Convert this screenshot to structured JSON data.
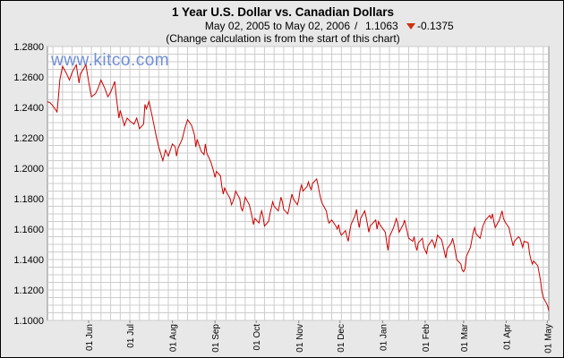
{
  "header": {
    "title": "1 Year U.S. Dollar vs. Canadian Dollars",
    "range_text": "May 02, 2005 to May 02, 2006",
    "separator": "/",
    "last_value": "1.1063",
    "change_value": "-0.1375",
    "change_direction_icon": "down-triangle-icon",
    "note": "(Change calculation is from the start of this chart)"
  },
  "watermark": "www.kitco.com",
  "colors": {
    "background": "#e8e8e8",
    "plot_background": "#ffffff",
    "grid": "#c8c8c8",
    "line": "#cc0000",
    "down_arrow": "#cc3311",
    "watermark": "#6f8fd8"
  },
  "chart_data": {
    "type": "line",
    "title": "1 Year U.S. Dollar vs. Canadian Dollars",
    "xlabel": "",
    "ylabel": "",
    "ylim": [
      1.1,
      1.28
    ],
    "xlim": [
      "2005-05-02",
      "2006-05-02"
    ],
    "grid": true,
    "legend": "none",
    "y_ticks": [
      "1.1000",
      "1.1200",
      "1.1400",
      "1.1600",
      "1.1800",
      "1.2000",
      "1.2200",
      "1.2400",
      "1.2600",
      "1.2800"
    ],
    "x_ticks": [
      {
        "label": "01 Jun",
        "date": "2005-06-01"
      },
      {
        "label": "01 Jul",
        "date": "2005-07-01"
      },
      {
        "label": "01 Aug",
        "date": "2005-08-01"
      },
      {
        "label": "01 Sep",
        "date": "2005-09-01"
      },
      {
        "label": "01 Oct",
        "date": "2005-10-01"
      },
      {
        "label": "01 Nov",
        "date": "2005-11-01"
      },
      {
        "label": "01 Dec",
        "date": "2005-12-01"
      },
      {
        "label": "01 Jan",
        "date": "2006-01-01"
      },
      {
        "label": "01 Feb",
        "date": "2006-02-01"
      },
      {
        "label": "01 Mar",
        "date": "2006-03-01"
      },
      {
        "label": "01 Apr",
        "date": "2006-04-01"
      },
      {
        "label": "01 May",
        "date": "2006-05-01"
      }
    ],
    "series": [
      {
        "points": [
          [
            "2005-05-02",
            1.2438
          ],
          [
            "2005-05-04",
            1.243
          ],
          [
            "2005-05-06",
            1.241
          ],
          [
            "2005-05-09",
            1.237
          ],
          [
            "2005-05-10",
            1.247
          ],
          [
            "2005-05-11",
            1.258
          ],
          [
            "2005-05-13",
            1.267
          ],
          [
            "2005-05-16",
            1.262
          ],
          [
            "2005-05-18",
            1.258
          ],
          [
            "2005-05-20",
            1.263
          ],
          [
            "2005-05-23",
            1.268
          ],
          [
            "2005-05-25",
            1.256
          ],
          [
            "2005-05-26",
            1.262
          ],
          [
            "2005-05-30",
            1.268
          ],
          [
            "2005-06-01",
            1.257
          ],
          [
            "2005-06-03",
            1.247
          ],
          [
            "2005-06-06",
            1.249
          ],
          [
            "2005-06-08",
            1.253
          ],
          [
            "2005-06-10",
            1.258
          ],
          [
            "2005-06-13",
            1.252
          ],
          [
            "2005-06-15",
            1.247
          ],
          [
            "2005-06-17",
            1.25
          ],
          [
            "2005-06-20",
            1.257
          ],
          [
            "2005-06-21",
            1.248
          ],
          [
            "2005-06-23",
            1.233
          ],
          [
            "2005-06-24",
            1.238
          ],
          [
            "2005-06-27",
            1.228
          ],
          [
            "2005-06-29",
            1.233
          ],
          [
            "2005-07-01",
            1.231
          ],
          [
            "2005-07-04",
            1.229
          ],
          [
            "2005-07-06",
            1.233
          ],
          [
            "2005-07-08",
            1.226
          ],
          [
            "2005-07-11",
            1.229
          ],
          [
            "2005-07-12",
            1.242
          ],
          [
            "2005-07-13",
            1.239
          ],
          [
            "2005-07-15",
            1.244
          ],
          [
            "2005-07-18",
            1.231
          ],
          [
            "2005-07-20",
            1.222
          ],
          [
            "2005-07-21",
            1.218
          ],
          [
            "2005-07-22",
            1.214
          ],
          [
            "2005-07-25",
            1.205
          ],
          [
            "2005-07-27",
            1.212
          ],
          [
            "2005-07-29",
            1.208
          ],
          [
            "2005-08-01",
            1.216
          ],
          [
            "2005-08-03",
            1.214
          ],
          [
            "2005-08-04",
            1.208
          ],
          [
            "2005-08-05",
            1.213
          ],
          [
            "2005-08-08",
            1.219
          ],
          [
            "2005-08-10",
            1.226
          ],
          [
            "2005-08-12",
            1.232
          ],
          [
            "2005-08-15",
            1.228
          ],
          [
            "2005-08-17",
            1.222
          ],
          [
            "2005-08-18",
            1.214
          ],
          [
            "2005-08-19",
            1.219
          ],
          [
            "2005-08-22",
            1.211
          ],
          [
            "2005-08-24",
            1.209
          ],
          [
            "2005-08-25",
            1.216
          ],
          [
            "2005-08-26",
            1.21
          ],
          [
            "2005-08-29",
            1.204
          ],
          [
            "2005-08-31",
            1.198
          ],
          [
            "2005-09-01",
            1.194
          ],
          [
            "2005-09-02",
            1.198
          ],
          [
            "2005-09-05",
            1.195
          ],
          [
            "2005-09-06",
            1.188
          ],
          [
            "2005-09-07",
            1.183
          ],
          [
            "2005-09-08",
            1.187
          ],
          [
            "2005-09-09",
            1.185
          ],
          [
            "2005-09-12",
            1.18
          ],
          [
            "2005-09-13",
            1.176
          ],
          [
            "2005-09-14",
            1.178
          ],
          [
            "2005-09-15",
            1.181
          ],
          [
            "2005-09-16",
            1.185
          ],
          [
            "2005-09-19",
            1.18
          ],
          [
            "2005-09-20",
            1.174
          ],
          [
            "2005-09-21",
            1.172
          ],
          [
            "2005-09-22",
            1.176
          ],
          [
            "2005-09-23",
            1.181
          ],
          [
            "2005-09-26",
            1.176
          ],
          [
            "2005-09-27",
            1.172
          ],
          [
            "2005-09-28",
            1.168
          ],
          [
            "2005-09-29",
            1.163
          ],
          [
            "2005-09-30",
            1.167
          ],
          [
            "2005-10-03",
            1.164
          ],
          [
            "2005-10-04",
            1.169
          ],
          [
            "2005-10-05",
            1.172
          ],
          [
            "2005-10-06",
            1.168
          ],
          [
            "2005-10-07",
            1.162
          ],
          [
            "2005-10-10",
            1.165
          ],
          [
            "2005-10-11",
            1.17
          ],
          [
            "2005-10-12",
            1.174
          ],
          [
            "2005-10-13",
            1.178
          ],
          [
            "2005-10-14",
            1.175
          ],
          [
            "2005-10-17",
            1.172
          ],
          [
            "2005-10-18",
            1.176
          ],
          [
            "2005-10-19",
            1.181
          ],
          [
            "2005-10-20",
            1.178
          ],
          [
            "2005-10-21",
            1.173
          ],
          [
            "2005-10-24",
            1.17
          ],
          [
            "2005-10-25",
            1.174
          ],
          [
            "2005-10-26",
            1.179
          ],
          [
            "2005-10-27",
            1.183
          ],
          [
            "2005-10-28",
            1.18
          ],
          [
            "2005-10-31",
            1.176
          ],
          [
            "2005-11-01",
            1.18
          ],
          [
            "2005-11-02",
            1.186
          ],
          [
            "2005-11-03",
            1.189
          ],
          [
            "2005-11-04",
            1.185
          ],
          [
            "2005-11-07",
            1.188
          ],
          [
            "2005-11-08",
            1.191
          ],
          [
            "2005-11-09",
            1.188
          ],
          [
            "2005-11-10",
            1.186
          ],
          [
            "2005-11-11",
            1.19
          ],
          [
            "2005-11-14",
            1.193
          ],
          [
            "2005-11-15",
            1.189
          ],
          [
            "2005-11-16",
            1.184
          ],
          [
            "2005-11-17",
            1.18
          ],
          [
            "2005-11-18",
            1.177
          ],
          [
            "2005-11-21",
            1.172
          ],
          [
            "2005-11-22",
            1.167
          ],
          [
            "2005-11-23",
            1.164
          ],
          [
            "2005-11-25",
            1.166
          ],
          [
            "2005-11-28",
            1.162
          ],
          [
            "2005-11-29",
            1.16
          ],
          [
            "2005-11-30",
            1.163
          ],
          [
            "2005-12-01",
            1.158
          ],
          [
            "2005-12-02",
            1.156
          ],
          [
            "2005-12-05",
            1.159
          ],
          [
            "2005-12-06",
            1.155
          ],
          [
            "2005-12-07",
            1.152
          ],
          [
            "2005-12-08",
            1.158
          ],
          [
            "2005-12-09",
            1.163
          ],
          [
            "2005-12-12",
            1.169
          ],
          [
            "2005-12-13",
            1.173
          ],
          [
            "2005-12-14",
            1.166
          ],
          [
            "2005-12-15",
            1.161
          ],
          [
            "2005-12-16",
            1.167
          ],
          [
            "2005-12-19",
            1.172
          ],
          [
            "2005-12-20",
            1.168
          ],
          [
            "2005-12-21",
            1.163
          ],
          [
            "2005-12-22",
            1.158
          ],
          [
            "2005-12-23",
            1.162
          ],
          [
            "2005-12-27",
            1.166
          ],
          [
            "2005-12-28",
            1.16
          ],
          [
            "2005-12-29",
            1.165
          ],
          [
            "2005-12-30",
            1.163
          ],
          [
            "2006-01-03",
            1.158
          ],
          [
            "2006-01-04",
            1.151
          ],
          [
            "2006-01-05",
            1.146
          ],
          [
            "2006-01-06",
            1.155
          ],
          [
            "2006-01-09",
            1.161
          ],
          [
            "2006-01-10",
            1.164
          ],
          [
            "2006-01-11",
            1.167
          ],
          [
            "2006-01-12",
            1.164
          ],
          [
            "2006-01-13",
            1.158
          ],
          [
            "2006-01-16",
            1.163
          ],
          [
            "2006-01-17",
            1.166
          ],
          [
            "2006-01-18",
            1.162
          ],
          [
            "2006-01-19",
            1.158
          ],
          [
            "2006-01-20",
            1.154
          ],
          [
            "2006-01-23",
            1.152
          ],
          [
            "2006-01-24",
            1.155
          ],
          [
            "2006-01-25",
            1.149
          ],
          [
            "2006-01-26",
            1.146
          ],
          [
            "2006-01-27",
            1.151
          ],
          [
            "2006-01-30",
            1.154
          ],
          [
            "2006-01-31",
            1.148
          ],
          [
            "2006-02-01",
            1.146
          ],
          [
            "2006-02-02",
            1.144
          ],
          [
            "2006-02-03",
            1.149
          ],
          [
            "2006-02-06",
            1.153
          ],
          [
            "2006-02-07",
            1.151
          ],
          [
            "2006-02-08",
            1.148
          ],
          [
            "2006-02-09",
            1.152
          ],
          [
            "2006-02-10",
            1.156
          ],
          [
            "2006-02-13",
            1.153
          ],
          [
            "2006-02-14",
            1.149
          ],
          [
            "2006-02-15",
            1.145
          ],
          [
            "2006-02-16",
            1.141
          ],
          [
            "2006-02-17",
            1.147
          ],
          [
            "2006-02-20",
            1.151
          ],
          [
            "2006-02-21",
            1.154
          ],
          [
            "2006-02-22",
            1.15
          ],
          [
            "2006-02-23",
            1.145
          ],
          [
            "2006-02-24",
            1.14
          ],
          [
            "2006-02-27",
            1.137
          ],
          [
            "2006-02-28",
            1.133
          ],
          [
            "2006-03-01",
            1.132
          ],
          [
            "2006-03-02",
            1.134
          ],
          [
            "2006-03-03",
            1.142
          ],
          [
            "2006-03-06",
            1.148
          ],
          [
            "2006-03-07",
            1.153
          ],
          [
            "2006-03-08",
            1.158
          ],
          [
            "2006-03-09",
            1.161
          ],
          [
            "2006-03-10",
            1.157
          ],
          [
            "2006-03-13",
            1.154
          ],
          [
            "2006-03-14",
            1.158
          ],
          [
            "2006-03-15",
            1.162
          ],
          [
            "2006-03-16",
            1.164
          ],
          [
            "2006-03-17",
            1.166
          ],
          [
            "2006-03-20",
            1.169
          ],
          [
            "2006-03-21",
            1.167
          ],
          [
            "2006-03-22",
            1.17
          ],
          [
            "2006-03-23",
            1.165
          ],
          [
            "2006-03-24",
            1.161
          ],
          [
            "2006-03-27",
            1.166
          ],
          [
            "2006-03-28",
            1.169
          ],
          [
            "2006-03-29",
            1.172
          ],
          [
            "2006-03-30",
            1.167
          ],
          [
            "2006-03-31",
            1.165
          ],
          [
            "2006-04-03",
            1.161
          ],
          [
            "2006-04-04",
            1.157
          ],
          [
            "2006-04-05",
            1.153
          ],
          [
            "2006-04-06",
            1.149
          ],
          [
            "2006-04-07",
            1.152
          ],
          [
            "2006-04-10",
            1.155
          ],
          [
            "2006-04-11",
            1.154
          ],
          [
            "2006-04-12",
            1.151
          ],
          [
            "2006-04-13",
            1.148
          ],
          [
            "2006-04-14",
            1.152
          ],
          [
            "2006-04-17",
            1.151
          ],
          [
            "2006-04-18",
            1.144
          ],
          [
            "2006-04-19",
            1.14
          ],
          [
            "2006-04-20",
            1.137
          ],
          [
            "2006-04-21",
            1.139
          ],
          [
            "2006-04-24",
            1.136
          ],
          [
            "2006-04-25",
            1.131
          ],
          [
            "2006-04-26",
            1.126
          ],
          [
            "2006-04-27",
            1.119
          ],
          [
            "2006-04-28",
            1.115
          ],
          [
            "2006-05-01",
            1.11
          ],
          [
            "2006-05-02",
            1.1063
          ]
        ]
      }
    ]
  }
}
